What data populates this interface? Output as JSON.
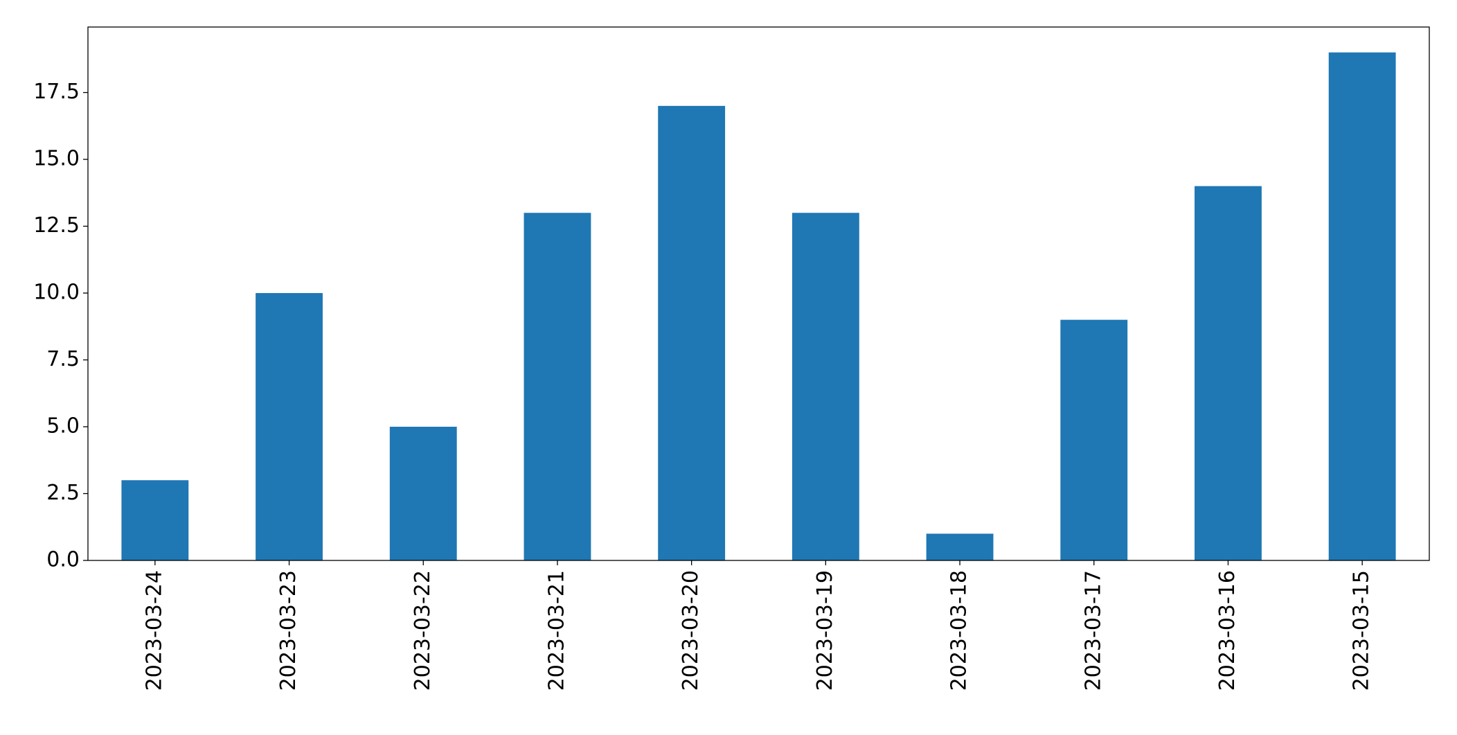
{
  "chart_data": {
    "type": "bar",
    "categories": [
      "2023-03-24",
      "2023-03-23",
      "2023-03-22",
      "2023-03-21",
      "2023-03-20",
      "2023-03-19",
      "2023-03-18",
      "2023-03-17",
      "2023-03-16",
      "2023-03-15"
    ],
    "values": [
      3,
      10,
      5,
      13,
      17,
      13,
      1,
      9,
      14,
      19
    ],
    "color": "#1f77b4",
    "ylim": [
      0,
      19.95
    ],
    "yticks": [
      {
        "value": 0,
        "label": "0.0"
      },
      2.5,
      {
        "value": 5,
        "label": "5.0"
      },
      7.5,
      {
        "value": 10,
        "label": "10.0"
      },
      12.5,
      {
        "value": 15,
        "label": "15.0"
      },
      17.5
    ],
    "grid": false
  }
}
